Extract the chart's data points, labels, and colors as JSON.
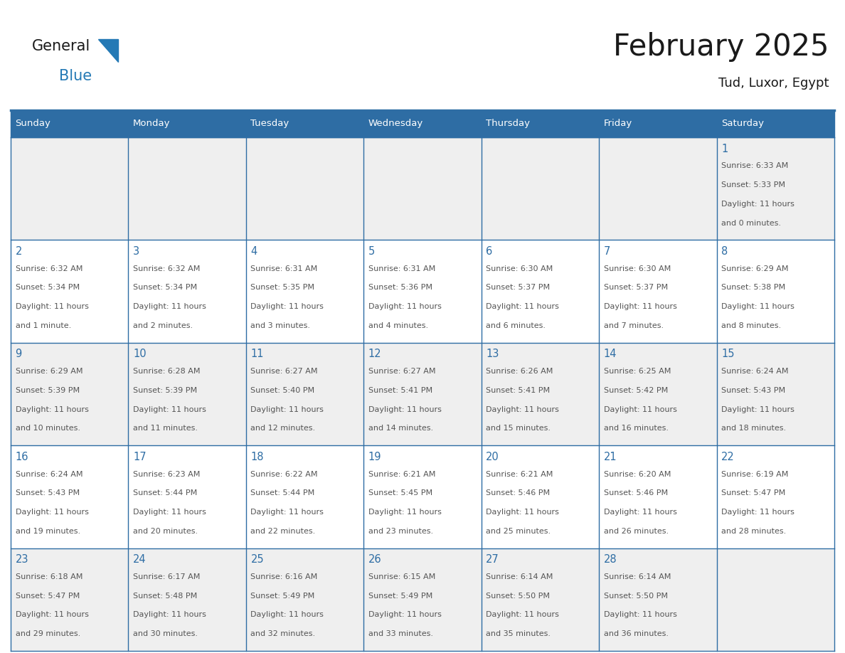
{
  "title": "February 2025",
  "subtitle": "Tud, Luxor, Egypt",
  "days_of_week": [
    "Sunday",
    "Monday",
    "Tuesday",
    "Wednesday",
    "Thursday",
    "Friday",
    "Saturday"
  ],
  "header_bg": "#2E6DA4",
  "header_text": "#FFFFFF",
  "row_bg_gray": "#EFEFEF",
  "row_bg_white": "#FFFFFF",
  "cell_border": "#2E6DA4",
  "day_number_color": "#2E6DA4",
  "text_color": "#555555",
  "title_color": "#1a1a1a",
  "calendar_data": [
    [
      null,
      null,
      null,
      null,
      null,
      null,
      {
        "day": 1,
        "sunrise": "6:33 AM",
        "sunset": "5:33 PM",
        "daylight": "11 hours and 0 minutes."
      }
    ],
    [
      {
        "day": 2,
        "sunrise": "6:32 AM",
        "sunset": "5:34 PM",
        "daylight": "11 hours and 1 minute."
      },
      {
        "day": 3,
        "sunrise": "6:32 AM",
        "sunset": "5:34 PM",
        "daylight": "11 hours and 2 minutes."
      },
      {
        "day": 4,
        "sunrise": "6:31 AM",
        "sunset": "5:35 PM",
        "daylight": "11 hours and 3 minutes."
      },
      {
        "day": 5,
        "sunrise": "6:31 AM",
        "sunset": "5:36 PM",
        "daylight": "11 hours and 4 minutes."
      },
      {
        "day": 6,
        "sunrise": "6:30 AM",
        "sunset": "5:37 PM",
        "daylight": "11 hours and 6 minutes."
      },
      {
        "day": 7,
        "sunrise": "6:30 AM",
        "sunset": "5:37 PM",
        "daylight": "11 hours and 7 minutes."
      },
      {
        "day": 8,
        "sunrise": "6:29 AM",
        "sunset": "5:38 PM",
        "daylight": "11 hours and 8 minutes."
      }
    ],
    [
      {
        "day": 9,
        "sunrise": "6:29 AM",
        "sunset": "5:39 PM",
        "daylight": "11 hours and 10 minutes."
      },
      {
        "day": 10,
        "sunrise": "6:28 AM",
        "sunset": "5:39 PM",
        "daylight": "11 hours and 11 minutes."
      },
      {
        "day": 11,
        "sunrise": "6:27 AM",
        "sunset": "5:40 PM",
        "daylight": "11 hours and 12 minutes."
      },
      {
        "day": 12,
        "sunrise": "6:27 AM",
        "sunset": "5:41 PM",
        "daylight": "11 hours and 14 minutes."
      },
      {
        "day": 13,
        "sunrise": "6:26 AM",
        "sunset": "5:41 PM",
        "daylight": "11 hours and 15 minutes."
      },
      {
        "day": 14,
        "sunrise": "6:25 AM",
        "sunset": "5:42 PM",
        "daylight": "11 hours and 16 minutes."
      },
      {
        "day": 15,
        "sunrise": "6:24 AM",
        "sunset": "5:43 PM",
        "daylight": "11 hours and 18 minutes."
      }
    ],
    [
      {
        "day": 16,
        "sunrise": "6:24 AM",
        "sunset": "5:43 PM",
        "daylight": "11 hours and 19 minutes."
      },
      {
        "day": 17,
        "sunrise": "6:23 AM",
        "sunset": "5:44 PM",
        "daylight": "11 hours and 20 minutes."
      },
      {
        "day": 18,
        "sunrise": "6:22 AM",
        "sunset": "5:44 PM",
        "daylight": "11 hours and 22 minutes."
      },
      {
        "day": 19,
        "sunrise": "6:21 AM",
        "sunset": "5:45 PM",
        "daylight": "11 hours and 23 minutes."
      },
      {
        "day": 20,
        "sunrise": "6:21 AM",
        "sunset": "5:46 PM",
        "daylight": "11 hours and 25 minutes."
      },
      {
        "day": 21,
        "sunrise": "6:20 AM",
        "sunset": "5:46 PM",
        "daylight": "11 hours and 26 minutes."
      },
      {
        "day": 22,
        "sunrise": "6:19 AM",
        "sunset": "5:47 PM",
        "daylight": "11 hours and 28 minutes."
      }
    ],
    [
      {
        "day": 23,
        "sunrise": "6:18 AM",
        "sunset": "5:47 PM",
        "daylight": "11 hours and 29 minutes."
      },
      {
        "day": 24,
        "sunrise": "6:17 AM",
        "sunset": "5:48 PM",
        "daylight": "11 hours and 30 minutes."
      },
      {
        "day": 25,
        "sunrise": "6:16 AM",
        "sunset": "5:49 PM",
        "daylight": "11 hours and 32 minutes."
      },
      {
        "day": 26,
        "sunrise": "6:15 AM",
        "sunset": "5:49 PM",
        "daylight": "11 hours and 33 minutes."
      },
      {
        "day": 27,
        "sunrise": "6:14 AM",
        "sunset": "5:50 PM",
        "daylight": "11 hours and 35 minutes."
      },
      {
        "day": 28,
        "sunrise": "6:14 AM",
        "sunset": "5:50 PM",
        "daylight": "11 hours and 36 minutes."
      },
      null
    ]
  ],
  "logo_text_general": "General",
  "logo_text_blue": "Blue",
  "logo_color_general": "#1a1a1a",
  "logo_color_blue": "#2479B5",
  "header_line_color": "#2E6DA4",
  "fig_width": 11.88,
  "fig_height": 9.18,
  "dpi": 100
}
